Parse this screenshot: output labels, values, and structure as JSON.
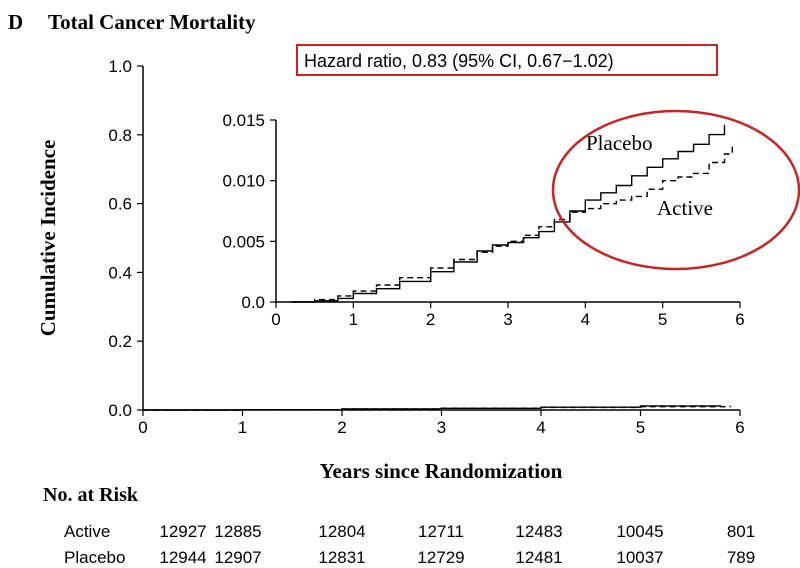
{
  "panel_label": "D",
  "title": "Total Cancer Mortality",
  "hazard_ratio": "Hazard ratio, 0.83 (95% CI, 0.67−1.02)",
  "risk_table": {
    "heading": "No. at Risk",
    "rows": [
      {
        "label": "Active",
        "values": [
          "12927",
          "12885",
          "12804",
          "12711",
          "12483",
          "10045",
          "801"
        ]
      },
      {
        "label": "Placebo",
        "values": [
          "12944",
          "12907",
          "12831",
          "12729",
          "12481",
          "10037",
          "789"
        ]
      }
    ]
  },
  "colors": {
    "highlight": "#cc2222",
    "curve": "#000000"
  },
  "chart_data": [
    {
      "type": "line",
      "xlabel": "Years since Randomization",
      "ylabel": "Cumulative Incidence",
      "xlim": [
        0,
        6
      ],
      "ylim": [
        0,
        1.0
      ],
      "xticks": [
        "0",
        "1",
        "2",
        "3",
        "4",
        "5",
        "6"
      ],
      "yticks": [
        "0.0",
        "0.2",
        "0.4",
        "0.6",
        "0.8",
        "1.0"
      ],
      "grid": false,
      "series": [
        {
          "name": "Placebo",
          "style": "solid",
          "x": [
            0,
            1,
            2,
            3,
            4,
            5,
            5.8
          ],
          "y": [
            0,
            0.0005,
            0.003,
            0.005,
            0.008,
            0.0118,
            0.0146
          ]
        },
        {
          "name": "Active",
          "style": "dashed",
          "x": [
            0,
            1,
            2,
            3,
            4,
            5,
            5.9
          ],
          "y": [
            0,
            0.0008,
            0.0032,
            0.0053,
            0.0075,
            0.0095,
            0.0127
          ]
        }
      ]
    },
    {
      "type": "line",
      "inset": true,
      "xlim": [
        0,
        6
      ],
      "ylim": [
        0,
        0.015
      ],
      "xticks": [
        "0",
        "1",
        "2",
        "3",
        "4",
        "5",
        "6"
      ],
      "yticks": [
        "0.0",
        "0.005",
        "0.010",
        "0.015"
      ],
      "grid": false,
      "series": [
        {
          "name": "Placebo",
          "style": "solid",
          "x": [
            0.2,
            0.5,
            0.8,
            1.0,
            1.3,
            1.6,
            2.0,
            2.3,
            2.6,
            2.8,
            3.0,
            3.2,
            3.4,
            3.6,
            3.8,
            4.0,
            4.2,
            4.4,
            4.6,
            4.8,
            5.0,
            5.2,
            5.4,
            5.6,
            5.8
          ],
          "y": [
            0.0,
            0.0001,
            0.0003,
            0.0007,
            0.0011,
            0.0017,
            0.0025,
            0.0033,
            0.0042,
            0.0047,
            0.0049,
            0.0053,
            0.0058,
            0.0066,
            0.0075,
            0.0084,
            0.009,
            0.0096,
            0.0104,
            0.0111,
            0.0118,
            0.0124,
            0.013,
            0.0138,
            0.0146
          ]
        },
        {
          "name": "Active",
          "style": "dashed",
          "x": [
            0.2,
            0.5,
            0.8,
            1.0,
            1.3,
            1.6,
            2.0,
            2.3,
            2.6,
            2.8,
            3.0,
            3.2,
            3.4,
            3.6,
            3.8,
            4.0,
            4.2,
            4.4,
            4.6,
            4.8,
            5.0,
            5.2,
            5.4,
            5.6,
            5.8,
            5.9
          ],
          "y": [
            0.0,
            0.0002,
            0.0005,
            0.0009,
            0.0014,
            0.002,
            0.0028,
            0.0035,
            0.0041,
            0.0046,
            0.005,
            0.0055,
            0.0062,
            0.0068,
            0.0074,
            0.0077,
            0.0081,
            0.0084,
            0.0087,
            0.0093,
            0.01,
            0.0103,
            0.0106,
            0.0115,
            0.0122,
            0.0128
          ]
        }
      ]
    }
  ]
}
